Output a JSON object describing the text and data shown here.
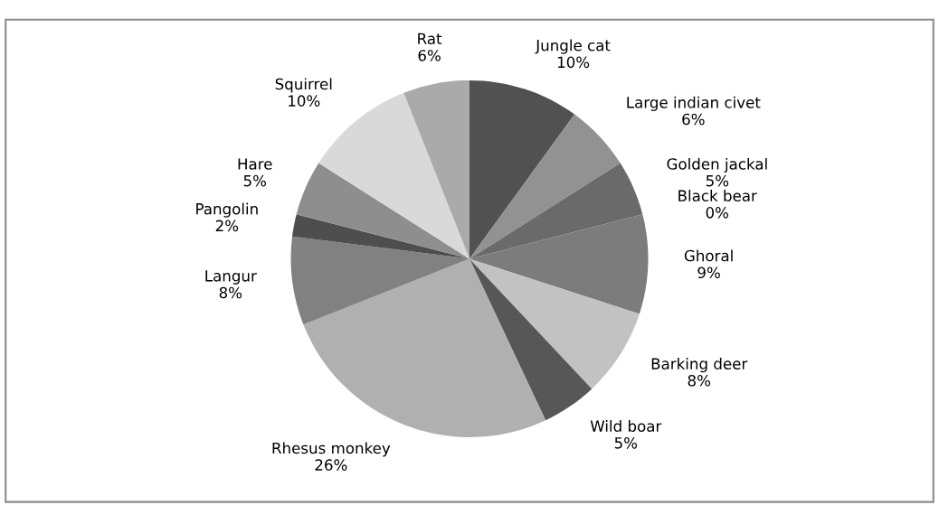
{
  "chart_data": {
    "type": "pie",
    "categories": [
      "Jungle cat",
      "Large indian civet",
      "Golden jackal",
      "Black bear",
      "Ghoral",
      "Barking deer",
      "Wild boar",
      "Rhesus monkey",
      "Langur",
      "Pangolin",
      "Hare",
      "Squirrel",
      "Rat"
    ],
    "values": [
      10,
      6,
      5,
      0,
      9,
      8,
      5,
      26,
      8,
      2,
      5,
      10,
      6
    ],
    "value_labels": [
      "10%",
      "6%",
      "5%",
      "0%",
      "9%",
      "8%",
      "5%",
      "26%",
      "8%",
      "2%",
      "5%",
      "10%",
      "6%"
    ],
    "colors": [
      "#515151",
      "#929292",
      "#6a6a6a",
      "#5e5e5e",
      "#7c7c7c",
      "#c2c2c2",
      "#575757",
      "#b0b0b0",
      "#818181",
      "#4e4e4e",
      "#8e8e8e",
      "#d9d9d9",
      "#aaaaaa"
    ],
    "legend": false
  }
}
